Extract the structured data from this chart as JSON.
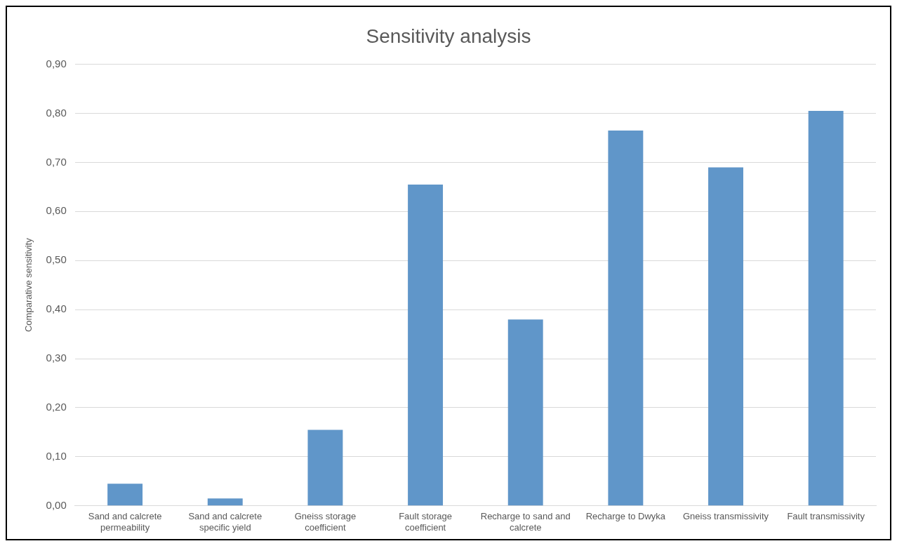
{
  "chart_data": {
    "type": "bar",
    "title": "Sensitivity analysis",
    "ylabel": "Comparative sensitivity",
    "categories": [
      "Sand and calcrete permeability",
      "Sand and calcrete specific yield",
      "Gneiss storage coefficient",
      "Fault storage coefficient",
      "Recharge to sand and calcrete",
      "Recharge to Dwyka",
      "Gneiss transmissivity",
      "Fault transmissivity"
    ],
    "values": [
      0.045,
      0.015,
      0.155,
      0.655,
      0.38,
      0.765,
      0.69,
      0.805
    ],
    "color": "#6096c9",
    "ylim": [
      0,
      0.9
    ],
    "yticks": [
      {
        "value": 0,
        "label": "0,00"
      },
      {
        "value": 0.1,
        "label": "0,10"
      },
      {
        "value": 0.2,
        "label": "0,20"
      },
      {
        "value": 0.3,
        "label": "0,30"
      },
      {
        "value": 0.4,
        "label": "0,40"
      },
      {
        "value": 0.5,
        "label": "0,50"
      },
      {
        "value": 0.6,
        "label": "0,60"
      },
      {
        "value": 0.7,
        "label": "0,70"
      },
      {
        "value": 0.8,
        "label": "0,80"
      },
      {
        "value": 0.9,
        "label": "0,90"
      }
    ],
    "grid": "y",
    "legend": false
  }
}
